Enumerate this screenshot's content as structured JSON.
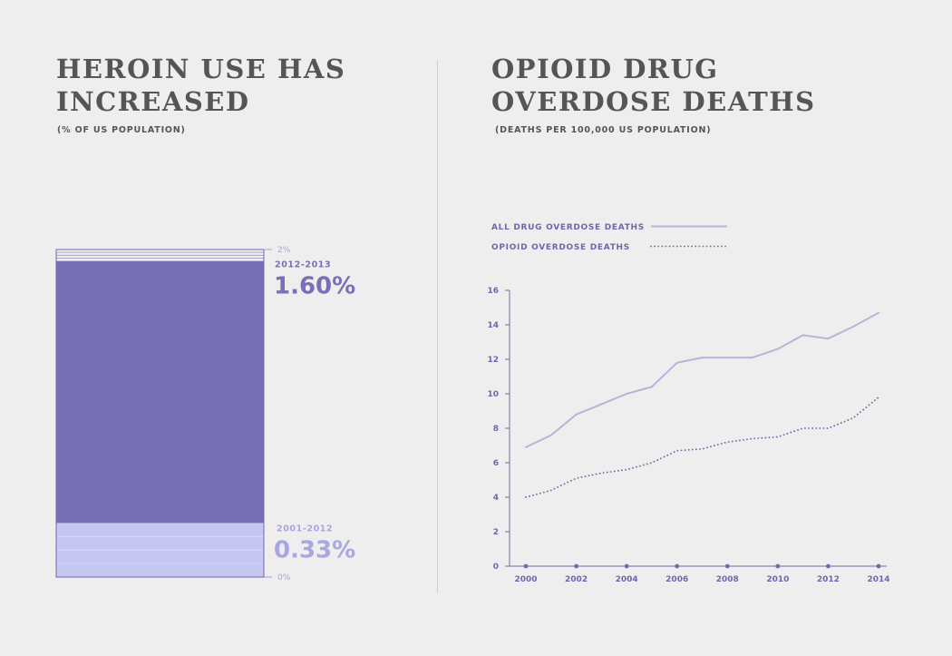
{
  "left": {
    "title": "HEROIN USE HAS INCREASED",
    "subtitle": "(% OF US POPULATION)"
  },
  "right": {
    "title": "OPIOID DRUG OVERDOSE DEATHS",
    "subtitle": "(DEATHS PER 100,000 US POPULATION)"
  },
  "colors": {
    "dark_fill": "#7770b6",
    "light_fill": "#c6c6f3",
    "line_color": "#b9b3d8",
    "dot_color": "#7368ad",
    "axis_color": "#7368ad"
  },
  "chart_data": [
    {
      "type": "bar",
      "title": "HEROIN USE HAS INCREASED",
      "subtitle": "(% OF US POPULATION)",
      "ylim": [
        0,
        2
      ],
      "scale_labels": [
        "2%",
        "0%"
      ],
      "segments": [
        {
          "period": "2001-2012",
          "value": 0.33,
          "label": "0.33%"
        },
        {
          "period": "2012-2013",
          "value": 1.6,
          "label": "1.60%"
        }
      ]
    },
    {
      "type": "line",
      "title": "OPIOID DRUG OVERDOSE DEATHS",
      "subtitle": "(DEATHS PER 100,000 US POPULATION)",
      "x": [
        2000,
        2001,
        2002,
        2003,
        2004,
        2005,
        2006,
        2007,
        2008,
        2009,
        2010,
        2011,
        2012,
        2013,
        2014
      ],
      "xticks": [
        "2000",
        "2002",
        "2004",
        "2006",
        "2008",
        "2010",
        "2012",
        "2014"
      ],
      "yticks": [
        "0",
        "2",
        "4",
        "6",
        "8",
        "10",
        "12",
        "14",
        "16"
      ],
      "ylim": [
        0,
        16
      ],
      "xlim": [
        2000,
        2014
      ],
      "grid": false,
      "legend_position": "top-left",
      "series": [
        {
          "name": "ALL DRUG OVERDOSE DEATHS",
          "style": "solid",
          "values": [
            6.9,
            7.6,
            8.8,
            9.4,
            10.0,
            10.4,
            11.8,
            12.1,
            12.1,
            12.1,
            12.6,
            13.4,
            13.2,
            13.9,
            14.7
          ]
        },
        {
          "name": "OPIOID OVERDOSE DEATHS",
          "style": "dotted",
          "values": [
            4.0,
            4.4,
            5.1,
            5.4,
            5.6,
            6.0,
            6.7,
            6.8,
            7.2,
            7.4,
            7.5,
            8.0,
            8.0,
            8.6,
            9.8
          ]
        }
      ]
    }
  ]
}
